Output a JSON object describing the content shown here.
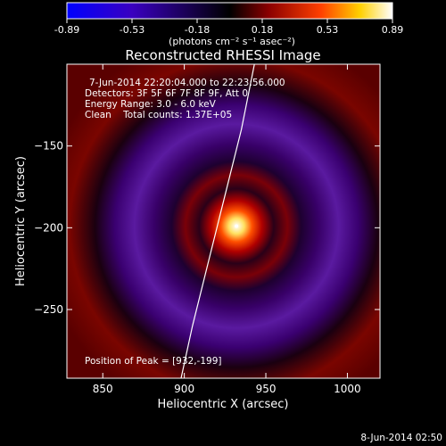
{
  "colorbar": {
    "ticks": [
      "-0.89",
      "-0.53",
      "-0.18",
      "0.18",
      "0.53",
      "0.89"
    ],
    "unit_label": "(photons cm⁻² s⁻¹ asec⁻²)",
    "range": [
      -0.89,
      0.89
    ],
    "colormap": [
      "#0000ff",
      "#3a00c0",
      "#000000",
      "#8b0000",
      "#ff4000",
      "#ffd000",
      "#ffffff"
    ]
  },
  "chart_data": {
    "type": "heatmap",
    "title": "Reconstructed RHESSI Image",
    "xlabel": "Heliocentric X (arcsec)",
    "ylabel": "Heliocentric Y (arcsec)",
    "xlim": [
      828,
      1020
    ],
    "ylim": [
      -292,
      -100
    ],
    "x_ticks": [
      850,
      900,
      950,
      1000
    ],
    "y_ticks": [
      -150,
      -200,
      -250
    ],
    "x_tick_labels": [
      "850",
      "900",
      "950",
      "1000"
    ],
    "y_tick_labels": [
      "−150",
      "−200",
      "−250"
    ],
    "peak": {
      "x": 932,
      "y": -199,
      "value": 0.89
    },
    "annotations": {
      "time_range": "7-Jun-2014 22:20:04.000 to 22:23:56.000",
      "detectors": "Detectors: 3F 5F 6F 7F 8F 9F, Att 0",
      "energy": "Energy Range: 3.0 - 6.0 keV",
      "clean": "Clean    Total counts: 1.37E+05",
      "peak_position": "Position of Peak = [932,-199]"
    },
    "limb_curve": {
      "x": [
        898,
        905,
        915,
        925,
        935,
        943
      ],
      "y": [
        -292,
        -260,
        -220,
        -180,
        -140,
        -100
      ]
    }
  },
  "footer_date": "8-Jun-2014 02:50"
}
